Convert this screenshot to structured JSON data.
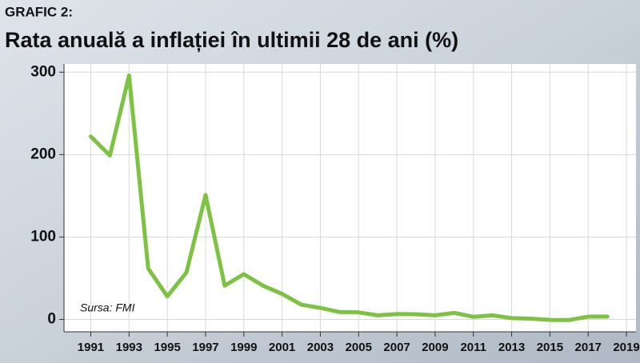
{
  "chart_data": {
    "type": "line",
    "kicker": "GRAFIC 2:",
    "title": "Rata anuală a inflației în ultimii 28 de ani (%)",
    "annotation": "Sursa: FMI",
    "x": [
      1991,
      1992,
      1993,
      1994,
      1995,
      1996,
      1997,
      1998,
      1999,
      2000,
      2001,
      2002,
      2003,
      2004,
      2005,
      2006,
      2007,
      2008,
      2009,
      2010,
      2011,
      2012,
      2013,
      2014,
      2015,
      2016,
      2017,
      2018
    ],
    "values": [
      222,
      199,
      296,
      62,
      28,
      57,
      151,
      41,
      55,
      41,
      31,
      18,
      14,
      9,
      8.6,
      5,
      6.6,
      6.3,
      5,
      8,
      3.2,
      5,
      1.6,
      1,
      -0.6,
      -0.7,
      3.4,
      3.5
    ],
    "color": "#7dc242",
    "xlim": [
      1989.6,
      2019.5
    ],
    "xticks": [
      1991,
      1993,
      1995,
      1997,
      1999,
      2001,
      2003,
      2005,
      2007,
      2009,
      2011,
      2013,
      2015,
      2017,
      2019
    ],
    "ylim": [
      -15,
      310
    ],
    "yticks": [
      0,
      100,
      200,
      300
    ],
    "grid": true
  }
}
